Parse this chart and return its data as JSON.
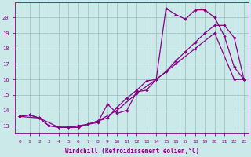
{
  "background_color": "#cbe9e9",
  "grid_color": "#a0c4c4",
  "line_color": "#880088",
  "xlim": [
    -0.5,
    23.5
  ],
  "ylim": [
    12.5,
    21.0
  ],
  "xticks": [
    0,
    1,
    2,
    3,
    4,
    5,
    6,
    7,
    8,
    9,
    10,
    11,
    12,
    13,
    14,
    15,
    16,
    17,
    18,
    19,
    20,
    21,
    22,
    23
  ],
  "yticks": [
    13,
    14,
    15,
    16,
    17,
    18,
    19,
    20
  ],
  "xlabel": "Windchill (Refroidissement éolien,°C)",
  "line1_x": [
    0,
    1,
    2,
    3,
    4,
    5,
    6,
    7,
    8,
    9,
    10,
    11,
    12,
    13,
    14,
    15,
    16,
    17,
    18,
    19,
    20,
    21,
    22,
    23
  ],
  "line1_y": [
    13.6,
    13.7,
    13.5,
    13.0,
    12.9,
    12.9,
    12.9,
    13.1,
    13.2,
    14.4,
    13.8,
    14.0,
    15.2,
    15.3,
    16.0,
    20.6,
    20.2,
    19.9,
    20.5,
    20.5,
    20.0,
    18.8,
    16.8,
    16.0
  ],
  "line2_x": [
    0,
    1,
    2,
    3,
    4,
    5,
    6,
    7,
    8,
    9,
    10,
    11,
    12,
    13,
    14,
    15,
    16,
    17,
    18,
    19,
    20,
    21,
    22,
    23
  ],
  "line2_y": [
    13.6,
    13.7,
    13.5,
    13.0,
    12.9,
    12.9,
    13.0,
    13.1,
    13.3,
    13.5,
    14.2,
    14.8,
    15.3,
    15.9,
    16.0,
    16.5,
    17.2,
    17.8,
    18.4,
    19.0,
    19.5,
    19.5,
    18.7,
    16.0
  ],
  "line3_x": [
    0,
    2,
    4,
    6,
    8,
    10,
    12,
    14,
    16,
    18,
    20,
    22,
    23
  ],
  "line3_y": [
    13.6,
    13.5,
    12.9,
    12.9,
    13.3,
    14.0,
    15.1,
    16.0,
    17.0,
    18.0,
    19.0,
    16.0,
    16.0
  ]
}
